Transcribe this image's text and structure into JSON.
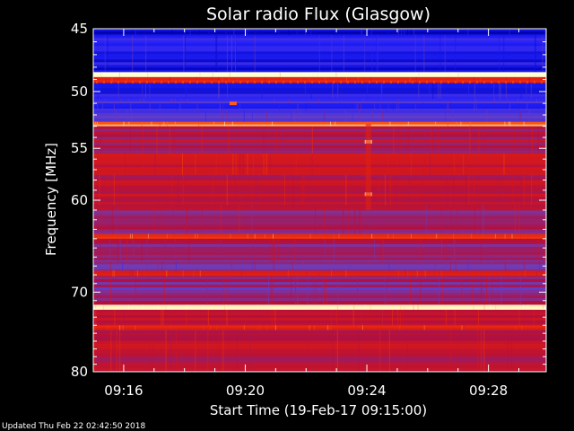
{
  "chart_data": {
    "type": "heatmap",
    "title": "Solar radio Flux (Glasgow)",
    "xlabel": "Start Time (19-Feb-17 09:15:00)",
    "ylabel": "Frequency [MHz]",
    "x_ticks": [
      "09:16",
      "09:20",
      "09:24",
      "09:28"
    ],
    "x_tick_minutes": [
      1,
      5,
      9,
      13
    ],
    "xlim_minutes": [
      0.0,
      14.9
    ],
    "y_ticks": [
      45,
      50,
      55,
      60,
      70,
      80
    ],
    "y_tick_labels": [
      "45",
      "50",
      "55",
      "60",
      "70",
      "80"
    ],
    "ylim": [
      45,
      80
    ],
    "y_scale": "log",
    "y_inverted": true,
    "colormap": [
      "#0000aa",
      "#2020ff",
      "#6a40c0",
      "#b01040",
      "#d81818",
      "#ff4000",
      "#ffb060",
      "#ffffd0"
    ],
    "bands": [
      {
        "from": 45.0,
        "to": 45.5,
        "intensity": 0.05
      },
      {
        "from": 45.5,
        "to": 48.4,
        "intensity": 0.12
      },
      {
        "from": 48.4,
        "to": 48.8,
        "intensity": 0.95
      },
      {
        "from": 48.8,
        "to": 49.3,
        "intensity": 0.55
      },
      {
        "from": 49.3,
        "to": 50.6,
        "intensity": 0.12
      },
      {
        "from": 50.6,
        "to": 51.0,
        "intensity": 0.25
      },
      {
        "from": 51.0,
        "to": 51.6,
        "intensity": 0.18
      },
      {
        "from": 51.6,
        "to": 52.6,
        "intensity": 0.22
      },
      {
        "from": 52.6,
        "to": 53.0,
        "intensity": 0.8
      },
      {
        "from": 53.0,
        "to": 55.5,
        "intensity": 0.45
      },
      {
        "from": 55.5,
        "to": 57.5,
        "intensity": 0.5
      },
      {
        "from": 57.5,
        "to": 60.5,
        "intensity": 0.48
      },
      {
        "from": 60.5,
        "to": 63.5,
        "intensity": 0.4
      },
      {
        "from": 63.5,
        "to": 64.0,
        "intensity": 0.7
      },
      {
        "from": 64.0,
        "to": 66.5,
        "intensity": 0.38
      },
      {
        "from": 66.5,
        "to": 67.5,
        "intensity": 0.28
      },
      {
        "from": 67.5,
        "to": 68.2,
        "intensity": 0.55
      },
      {
        "from": 68.2,
        "to": 71.5,
        "intensity": 0.35
      },
      {
        "from": 71.5,
        "to": 72.1,
        "intensity": 0.92
      },
      {
        "from": 72.1,
        "to": 74.0,
        "intensity": 0.5
      },
      {
        "from": 74.0,
        "to": 74.6,
        "intensity": 0.62
      },
      {
        "from": 74.6,
        "to": 80.0,
        "intensity": 0.47
      }
    ],
    "features": [
      {
        "kind": "spot",
        "x_minute": 9.05,
        "freq": 54.4,
        "intensity": 0.9
      },
      {
        "kind": "spot",
        "x_minute": 9.05,
        "freq": 59.4,
        "intensity": 0.85
      },
      {
        "kind": "spot",
        "x_minute": 4.6,
        "freq": 51.0,
        "intensity": 0.75
      },
      {
        "kind": "vertical",
        "x_minute": 9.05,
        "from": 52.8,
        "to": 61.0,
        "intensity": 0.6
      }
    ]
  },
  "footer": {
    "updated_text": "Updated Thu Feb 22 02:42:50 2018"
  }
}
